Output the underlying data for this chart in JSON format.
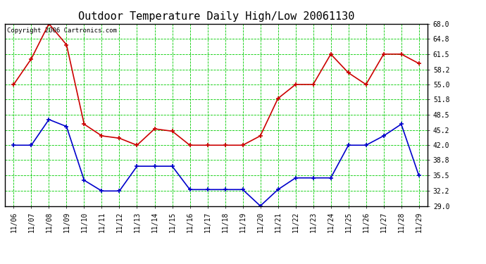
{
  "title": "Outdoor Temperature Daily High/Low 20061130",
  "copyright_text": "Copyright 2006 Cartronics.com",
  "x_labels": [
    "11/06",
    "11/07",
    "11/08",
    "11/09",
    "11/10",
    "11/11",
    "11/12",
    "11/13",
    "11/14",
    "11/15",
    "11/16",
    "11/17",
    "11/18",
    "11/19",
    "11/20",
    "11/21",
    "11/22",
    "11/23",
    "11/24",
    "11/25",
    "11/26",
    "11/27",
    "11/28",
    "11/29"
  ],
  "high_temps": [
    55.0,
    60.5,
    68.0,
    63.5,
    46.5,
    44.0,
    43.5,
    42.0,
    45.5,
    45.0,
    42.0,
    42.0,
    42.0,
    42.0,
    44.0,
    52.0,
    55.0,
    55.0,
    61.5,
    57.5,
    55.0,
    61.5,
    61.5,
    59.5
  ],
  "low_temps": [
    42.0,
    42.0,
    47.5,
    46.0,
    34.5,
    32.2,
    32.2,
    37.5,
    37.5,
    37.5,
    32.5,
    32.5,
    32.5,
    32.5,
    29.0,
    32.5,
    35.0,
    35.0,
    35.0,
    42.0,
    42.0,
    44.0,
    46.5,
    35.5
  ],
  "high_color": "#cc0000",
  "low_color": "#0000cc",
  "grid_color": "#00cc00",
  "bg_color": "#ffffff",
  "plot_bg_color": "#ffffff",
  "ylim_min": 29.0,
  "ylim_max": 68.0,
  "yticks": [
    29.0,
    32.2,
    35.5,
    38.8,
    42.0,
    45.2,
    48.5,
    51.8,
    55.0,
    58.2,
    61.5,
    64.8,
    68.0
  ],
  "marker": "+",
  "markersize": 5,
  "linewidth": 1.2,
  "title_fontsize": 11,
  "copyright_fontsize": 6.5
}
